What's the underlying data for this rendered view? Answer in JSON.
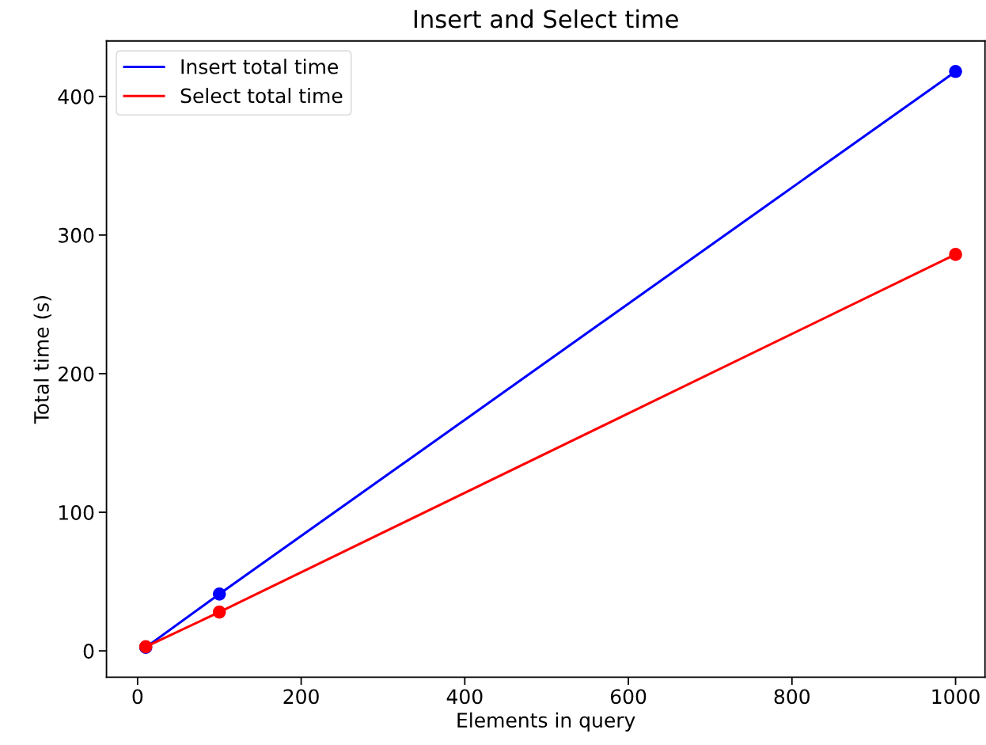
{
  "chart_data": {
    "type": "line",
    "title": "Insert and Select time",
    "xlabel": "Elements in query",
    "ylabel": "Total time (s)",
    "x": [
      10,
      100,
      1000
    ],
    "series": [
      {
        "name": "Insert total time",
        "color": "#0000ff",
        "values": [
          2.5,
          41,
          418
        ]
      },
      {
        "name": "Select total time",
        "color": "#ff0000",
        "values": [
          3,
          28,
          286
        ]
      }
    ],
    "xlim": [
      -38,
      1036
    ],
    "ylim": [
      -19,
      440
    ],
    "xticks": [
      0,
      200,
      400,
      600,
      800,
      1000
    ],
    "yticks": [
      0,
      100,
      200,
      300,
      400
    ],
    "marker": "circle",
    "line_style": "solid",
    "legend": "top left",
    "grid": false
  }
}
